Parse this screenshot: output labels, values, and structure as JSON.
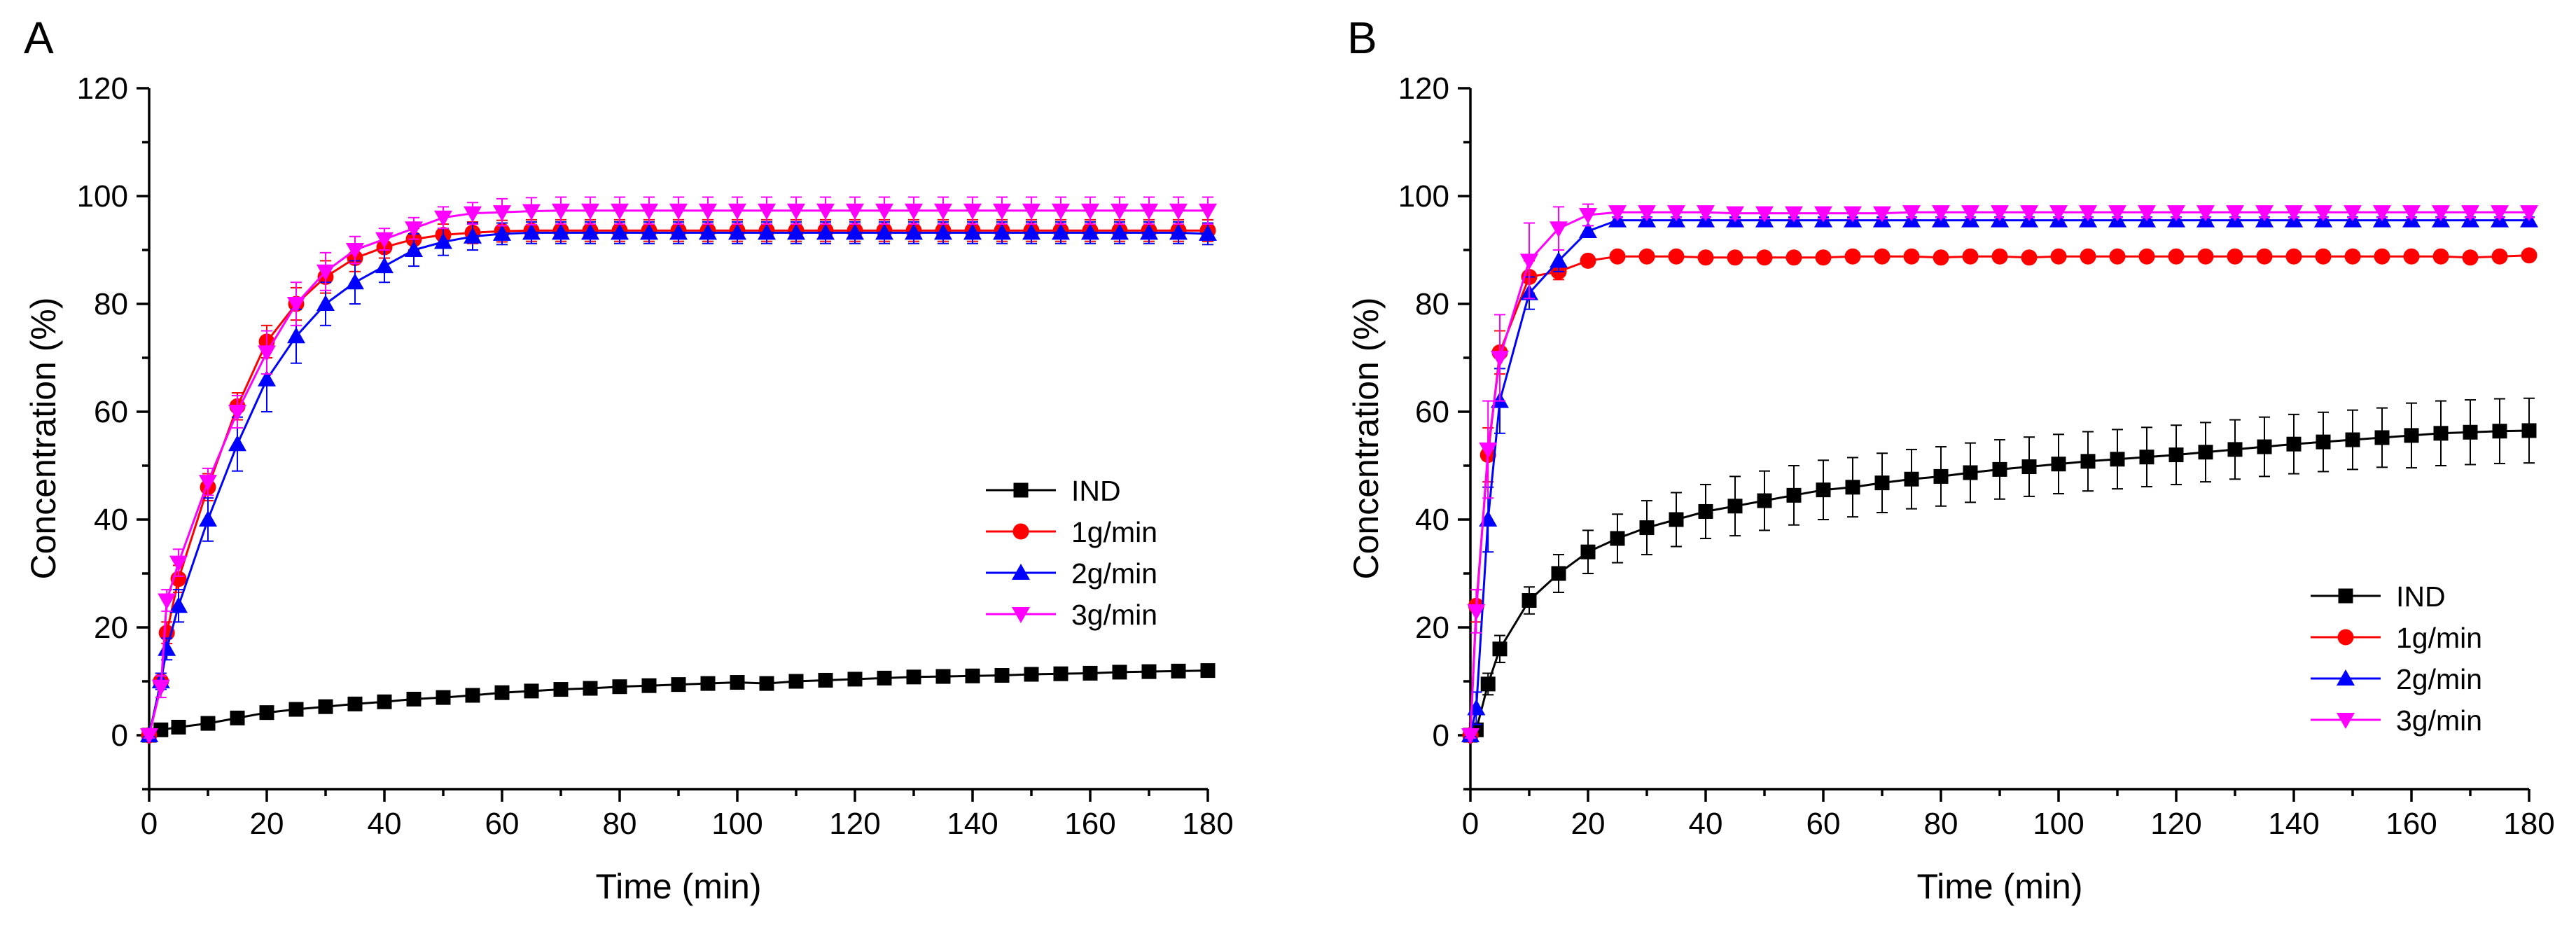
{
  "chart_data": [
    {
      "panel": "A",
      "type": "line",
      "xlabel": "Time (min)",
      "ylabel": "Concentration (%)",
      "xlim": [
        0,
        180
      ],
      "ylim": [
        -10,
        120
      ],
      "xticks": [
        0,
        20,
        40,
        60,
        80,
        100,
        120,
        140,
        160,
        180
      ],
      "yticks": [
        0,
        20,
        40,
        60,
        80,
        100,
        120
      ],
      "grid": false,
      "legend_position": "right-middle",
      "series": [
        {
          "name": "IND",
          "color": "#000000",
          "marker": "square",
          "x": [
            0,
            2,
            5,
            10,
            15,
            20,
            25,
            30,
            35,
            40,
            45,
            50,
            55,
            60,
            65,
            70,
            75,
            80,
            85,
            90,
            95,
            100,
            105,
            110,
            115,
            120,
            125,
            130,
            135,
            140,
            145,
            150,
            155,
            160,
            165,
            170,
            175,
            180
          ],
          "y": [
            0,
            1,
            1.5,
            2.2,
            3.2,
            4.2,
            4.8,
            5.3,
            5.8,
            6.2,
            6.7,
            7,
            7.4,
            7.9,
            8.2,
            8.5,
            8.7,
            9,
            9.2,
            9.4,
            9.6,
            9.8,
            9.6,
            10,
            10.2,
            10.4,
            10.6,
            10.8,
            10.9,
            11,
            11.1,
            11.3,
            11.4,
            11.5,
            11.7,
            11.8,
            11.9,
            12
          ],
          "err": [
            0.3,
            0.3,
            0.3,
            0.3,
            0.4,
            0.4,
            0.4,
            0.4,
            0.4,
            0.4,
            0.4,
            0.4,
            0.4,
            0.4,
            0.4,
            0.4,
            0.4,
            0.4,
            0.4,
            0.4,
            0.4,
            0.4,
            0.4,
            0.4,
            0.4,
            0.4,
            0.4,
            0.4,
            0.4,
            0.4,
            0.4,
            0.4,
            0.4,
            0.4,
            0.4,
            0.4,
            0.4,
            0.4
          ]
        },
        {
          "name": "1g/min",
          "color": "#ff0000",
          "marker": "circle",
          "x": [
            0,
            2,
            3,
            5,
            10,
            15,
            20,
            25,
            30,
            35,
            40,
            45,
            50,
            55,
            60,
            65,
            70,
            75,
            80,
            85,
            90,
            95,
            100,
            105,
            110,
            115,
            120,
            125,
            130,
            135,
            140,
            145,
            150,
            155,
            160,
            165,
            170,
            175,
            180
          ],
          "y": [
            0,
            10,
            19,
            29,
            46,
            61,
            73,
            80,
            85,
            88.5,
            90.5,
            92,
            92.8,
            93.2,
            93.5,
            93.6,
            93.6,
            93.6,
            93.6,
            93.6,
            93.6,
            93.6,
            93.6,
            93.6,
            93.6,
            93.6,
            93.6,
            93.6,
            93.6,
            93.6,
            93.6,
            93.6,
            93.6,
            93.6,
            93.6,
            93.6,
            93.6,
            93.6,
            93.6
          ],
          "err": [
            0.5,
            1.5,
            2,
            2.5,
            2.5,
            2.5,
            3,
            3,
            3,
            2.5,
            2,
            2,
            2,
            2,
            2,
            2,
            2,
            2,
            2,
            2,
            2,
            2,
            2,
            2,
            2,
            2,
            2,
            2,
            2,
            2,
            2,
            2,
            2,
            2,
            2,
            2,
            2,
            2,
            2
          ]
        },
        {
          "name": "2g/min",
          "color": "#0000ff",
          "marker": "triangle-up",
          "x": [
            0,
            2,
            3,
            5,
            10,
            15,
            20,
            25,
            30,
            35,
            40,
            45,
            50,
            55,
            60,
            65,
            70,
            75,
            80,
            85,
            90,
            95,
            100,
            105,
            110,
            115,
            120,
            125,
            130,
            135,
            140,
            145,
            150,
            155,
            160,
            165,
            170,
            175,
            180
          ],
          "y": [
            0,
            10,
            16,
            24,
            40,
            54,
            66,
            74,
            80,
            84,
            87,
            90,
            91.5,
            92.5,
            93,
            93.2,
            93.2,
            93.2,
            93.2,
            93.2,
            93.2,
            93.2,
            93.2,
            93.2,
            93.2,
            93.2,
            93.2,
            93.2,
            93.2,
            93.2,
            93.2,
            93.2,
            93.2,
            93.2,
            93.2,
            93.2,
            93.2,
            93.2,
            93
          ],
          "err": [
            0.5,
            1.5,
            2,
            3,
            4,
            5,
            6,
            5,
            4,
            4,
            3,
            3,
            2.5,
            2.5,
            2,
            2,
            2,
            2,
            2,
            2,
            2,
            2,
            2,
            2,
            2,
            2,
            2,
            2,
            2,
            2,
            2,
            2,
            2,
            2,
            2,
            2,
            2,
            2,
            2
          ]
        },
        {
          "name": "3g/min",
          "color": "#ff00ff",
          "marker": "triangle-down",
          "x": [
            0,
            2,
            3,
            5,
            10,
            15,
            20,
            25,
            30,
            35,
            40,
            45,
            50,
            55,
            60,
            65,
            70,
            75,
            80,
            85,
            90,
            95,
            100,
            105,
            110,
            115,
            120,
            125,
            130,
            135,
            140,
            145,
            150,
            155,
            160,
            165,
            170,
            175,
            180
          ],
          "y": [
            0,
            9,
            25,
            32,
            47,
            60,
            71,
            80,
            86,
            90,
            92,
            94,
            96,
            96.8,
            97,
            97.2,
            97.3,
            97.3,
            97.3,
            97.3,
            97.3,
            97.3,
            97.3,
            97.3,
            97.3,
            97.3,
            97.3,
            97.3,
            97.3,
            97.3,
            97.3,
            97.3,
            97.3,
            97.3,
            97.3,
            97.3,
            97.3,
            97.3,
            97.3
          ],
          "err": [
            0.5,
            2,
            2,
            2.5,
            2.5,
            3,
            4,
            4,
            3.5,
            2.5,
            2,
            2,
            2,
            2,
            2.5,
            2.5,
            2.5,
            2.5,
            2.5,
            2.5,
            2.5,
            2.5,
            2.5,
            2.5,
            2.5,
            2.5,
            2.5,
            2.5,
            2.5,
            2.5,
            2.5,
            2.5,
            2.5,
            2.5,
            2.5,
            2.5,
            2.5,
            2.5,
            2.5
          ]
        }
      ]
    },
    {
      "panel": "B",
      "type": "line",
      "xlabel": "Time (min)",
      "ylabel": "Concentration (%)",
      "xlim": [
        0,
        180
      ],
      "ylim": [
        -10,
        120
      ],
      "xticks": [
        0,
        20,
        40,
        60,
        80,
        100,
        120,
        140,
        160,
        180
      ],
      "yticks": [
        0,
        20,
        40,
        60,
        80,
        100,
        120
      ],
      "grid": false,
      "legend_position": "bottom-right",
      "series": [
        {
          "name": "IND",
          "color": "#000000",
          "marker": "square",
          "x": [
            0,
            1,
            3,
            5,
            10,
            15,
            20,
            25,
            30,
            35,
            40,
            45,
            50,
            55,
            60,
            65,
            70,
            75,
            80,
            85,
            90,
            95,
            100,
            105,
            110,
            115,
            120,
            125,
            130,
            135,
            140,
            145,
            150,
            155,
            160,
            165,
            170,
            175,
            180
          ],
          "y": [
            0,
            1,
            9.5,
            16,
            25,
            30,
            34,
            36.5,
            38.5,
            40,
            41.5,
            42.5,
            43.5,
            44.5,
            45.5,
            46,
            46.8,
            47.5,
            48,
            48.7,
            49.3,
            49.8,
            50.3,
            50.8,
            51.2,
            51.6,
            52,
            52.5,
            53,
            53.5,
            54,
            54.4,
            54.8,
            55.2,
            55.6,
            56,
            56.2,
            56.4,
            56.5
          ],
          "err": [
            0.5,
            1,
            2,
            2.5,
            2.5,
            3.5,
            4,
            4.5,
            5,
            5,
            5,
            5.5,
            5.5,
            5.5,
            5.5,
            5.5,
            5.5,
            5.5,
            5.5,
            5.5,
            5.5,
            5.5,
            5.5,
            5.5,
            5.5,
            5.5,
            5.5,
            5.5,
            5.5,
            5.5,
            5.5,
            5.5,
            5.5,
            5.5,
            6,
            6,
            6,
            6,
            6
          ]
        },
        {
          "name": "1g/min",
          "color": "#ff0000",
          "marker": "circle",
          "x": [
            0,
            1,
            3,
            5,
            10,
            15,
            20,
            25,
            30,
            35,
            40,
            45,
            50,
            55,
            60,
            65,
            70,
            75,
            80,
            85,
            90,
            95,
            100,
            105,
            110,
            115,
            120,
            125,
            130,
            135,
            140,
            145,
            150,
            155,
            160,
            165,
            170,
            175,
            180
          ],
          "y": [
            0,
            24,
            52,
            71,
            85,
            86,
            88,
            88.8,
            88.8,
            88.8,
            88.6,
            88.6,
            88.6,
            88.6,
            88.6,
            88.8,
            88.8,
            88.8,
            88.6,
            88.8,
            88.8,
            88.6,
            88.8,
            88.8,
            88.8,
            88.8,
            88.8,
            88.8,
            88.8,
            88.8,
            88.8,
            88.8,
            88.8,
            88.8,
            88.8,
            88.8,
            88.6,
            88.8,
            89
          ],
          "err": [
            0.5,
            3,
            5,
            4,
            3,
            1.5,
            1,
            0.5,
            0.5,
            0.5,
            0.5,
            0.5,
            0.5,
            0.5,
            0.5,
            0.5,
            0.5,
            0.5,
            0.5,
            0.5,
            0.5,
            0.5,
            0.5,
            0.5,
            0.5,
            0.5,
            0.5,
            0.5,
            0.5,
            0.5,
            0.5,
            0.5,
            0.5,
            0.5,
            0.5,
            0.5,
            0.5,
            0.5,
            0.5
          ]
        },
        {
          "name": "2g/min",
          "color": "#0000ff",
          "marker": "triangle-up",
          "x": [
            0,
            1,
            3,
            5,
            10,
            15,
            20,
            25,
            30,
            35,
            40,
            45,
            50,
            55,
            60,
            65,
            70,
            75,
            80,
            85,
            90,
            95,
            100,
            105,
            110,
            115,
            120,
            125,
            130,
            135,
            140,
            145,
            150,
            155,
            160,
            165,
            170,
            175,
            180
          ],
          "y": [
            0,
            5,
            40,
            62,
            82,
            88,
            93.5,
            95.5,
            95.5,
            95.5,
            95.5,
            95.5,
            95.5,
            95.5,
            95.5,
            95.5,
            95.5,
            95.5,
            95.5,
            95.5,
            95.5,
            95.5,
            95.5,
            95.5,
            95.5,
            95.5,
            95.5,
            95.5,
            95.5,
            95.5,
            95.5,
            95.5,
            95.5,
            95.5,
            95.5,
            95.5,
            95.5,
            95.5,
            95.5
          ],
          "err": [
            0.5,
            3,
            6,
            6,
            3,
            2,
            1,
            0.6,
            0.6,
            0.6,
            0.6,
            0.6,
            0.6,
            0.6,
            0.6,
            0.6,
            0.6,
            0.6,
            0.6,
            0.6,
            0.6,
            0.6,
            0.6,
            0.6,
            0.6,
            0.6,
            0.6,
            0.6,
            0.6,
            0.6,
            0.6,
            0.6,
            0.6,
            0.6,
            0.6,
            0.6,
            0.6,
            0.6,
            0.6
          ]
        },
        {
          "name": "3g/min",
          "color": "#ff00ff",
          "marker": "triangle-down",
          "x": [
            0,
            1,
            3,
            5,
            10,
            15,
            20,
            25,
            30,
            35,
            40,
            45,
            50,
            55,
            60,
            65,
            70,
            75,
            80,
            85,
            90,
            95,
            100,
            105,
            110,
            115,
            120,
            125,
            130,
            135,
            140,
            145,
            150,
            155,
            160,
            165,
            170,
            175,
            180
          ],
          "y": [
            0,
            23,
            53,
            70,
            88,
            94,
            96.5,
            97,
            97,
            97,
            97,
            96.8,
            96.8,
            96.8,
            96.8,
            96.8,
            96.8,
            97,
            97,
            97,
            97,
            97,
            97,
            97,
            97,
            97,
            97,
            97,
            97,
            97,
            97,
            97,
            97,
            97,
            97,
            97,
            97,
            97,
            97
          ],
          "err": [
            0.5,
            4,
            9,
            8,
            7,
            4,
            2,
            1,
            1,
            1,
            1,
            1,
            1,
            1,
            1,
            1,
            1,
            1,
            1,
            1,
            1,
            1,
            1,
            1,
            1,
            1,
            1,
            1,
            1,
            1,
            1,
            1,
            1,
            1,
            1,
            1,
            1,
            1,
            1
          ]
        }
      ]
    }
  ]
}
